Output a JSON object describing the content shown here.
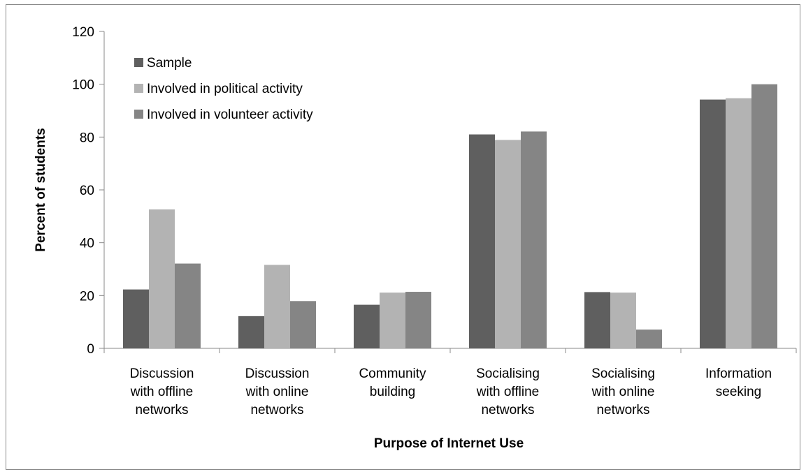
{
  "chart_data": {
    "type": "bar",
    "xlabel": "Purpose of Internet Use",
    "ylabel": "Percent of students",
    "ylim": [
      0,
      120
    ],
    "yticks": [
      0,
      20,
      40,
      60,
      80,
      100,
      120
    ],
    "grid": false,
    "legend_position": "top-left",
    "categories": [
      [
        "Discussion",
        "with offline",
        "networks"
      ],
      [
        "Discussion",
        "with online",
        "networks"
      ],
      [
        "Community",
        "building"
      ],
      [
        "Socialising",
        "with offline",
        "networks"
      ],
      [
        "Socialising",
        "with online",
        "networks"
      ],
      [
        "Information",
        "seeking"
      ]
    ],
    "series": [
      {
        "name": "Sample",
        "color": "#5f5f5f",
        "values": [
          22.3,
          12.2,
          16.5,
          81.0,
          21.3,
          94.2
        ]
      },
      {
        "name": "Involved in political activity",
        "color": "#b3b3b3",
        "values": [
          52.6,
          31.6,
          21.1,
          78.9,
          21.1,
          94.7
        ]
      },
      {
        "name": "Involved in volunteer activity",
        "color": "#858585",
        "values": [
          32.1,
          17.9,
          21.4,
          82.1,
          7.1,
          100.0
        ]
      }
    ]
  }
}
